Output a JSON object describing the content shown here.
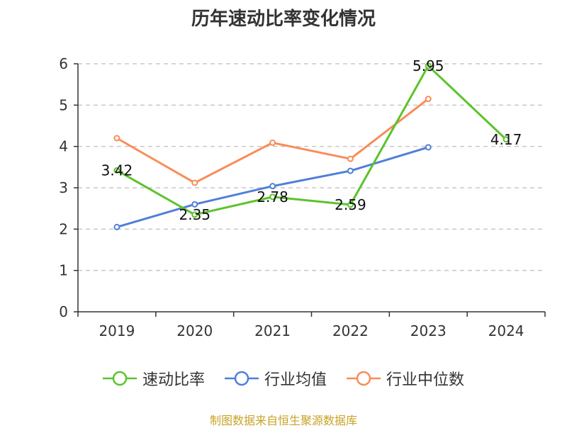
{
  "chart_data": {
    "type": "line",
    "title": "历年速动比率变化情况",
    "categories": [
      "2019",
      "2020",
      "2021",
      "2022",
      "2023",
      "2024"
    ],
    "ylim": [
      0,
      6
    ],
    "yticks": [
      0,
      1,
      2,
      3,
      4,
      5,
      6
    ],
    "grid": true,
    "legend_position": "bottom",
    "series": [
      {
        "name": "速动比率",
        "color": "#5cc32b",
        "values": [
          3.42,
          2.35,
          2.78,
          2.59,
          5.95,
          4.17
        ],
        "labels": [
          "3.42",
          "2.35",
          "2.78",
          "2.59",
          "5.95",
          "4.17"
        ]
      },
      {
        "name": "行业均值",
        "color": "#4f7fd8",
        "values": [
          2.05,
          2.6,
          3.04,
          3.41,
          3.98,
          null
        ]
      },
      {
        "name": "行业中位数",
        "color": "#f98c59",
        "values": [
          4.2,
          3.12,
          4.09,
          3.7,
          5.15,
          null
        ]
      }
    ]
  },
  "source": "制图数据来自恒生聚源数据库"
}
